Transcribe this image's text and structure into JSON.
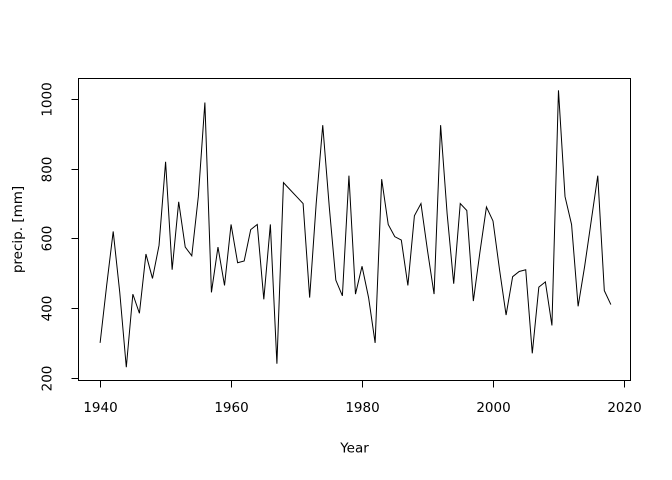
{
  "figure": {
    "background": "#ffffff",
    "line_color": "#000000",
    "axis_color": "#000000",
    "text_color": "#000000"
  },
  "chart_data": {
    "type": "line",
    "title": "",
    "xlabel": "Year",
    "ylabel": "precip. [mm]",
    "legend": null,
    "grid": false,
    "x_ticks": [
      1940,
      1960,
      1980,
      2000,
      2020
    ],
    "y_ticks": [
      200,
      400,
      600,
      800,
      1000
    ],
    "xlim": [
      1936.7,
      2021.0
    ],
    "ylim": [
      192,
      1059
    ],
    "x": [
      1940,
      1941,
      1942,
      1943,
      1944,
      1945,
      1946,
      1947,
      1948,
      1949,
      1950,
      1951,
      1952,
      1953,
      1954,
      1955,
      1956,
      1957,
      1958,
      1959,
      1960,
      1961,
      1962,
      1963,
      1964,
      1965,
      1966,
      1967,
      1968,
      1969,
      1970,
      1971,
      1972,
      1973,
      1974,
      1975,
      1976,
      1977,
      1978,
      1979,
      1980,
      1981,
      1982,
      1983,
      1984,
      1985,
      1986,
      1987,
      1988,
      1989,
      1990,
      1991,
      1992,
      1993,
      1994,
      1995,
      1996,
      1997,
      1998,
      1999,
      2000,
      2001,
      2002,
      2003,
      2004,
      2005,
      2006,
      2007,
      2008,
      2009,
      2010,
      2011,
      2012,
      2013,
      2014,
      2015,
      2016,
      2017,
      2018
    ],
    "values": [
      300,
      465,
      620,
      445,
      230,
      440,
      385,
      555,
      485,
      580,
      820,
      510,
      705,
      575,
      550,
      720,
      990,
      445,
      575,
      465,
      640,
      530,
      535,
      625,
      640,
      425,
      640,
      240,
      760,
      740,
      720,
      700,
      430,
      700,
      925,
      690,
      480,
      435,
      780,
      440,
      520,
      430,
      300,
      770,
      640,
      605,
      595,
      465,
      665,
      700,
      565,
      440,
      925,
      670,
      470,
      700,
      680,
      420,
      560,
      690,
      650,
      510,
      380,
      490,
      505,
      510,
      270,
      460,
      475,
      350,
      1025,
      720,
      640,
      405,
      520,
      650,
      780,
      450,
      410
    ]
  }
}
